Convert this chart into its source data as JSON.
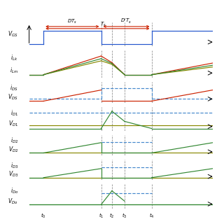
{
  "fig_width": 3.2,
  "fig_height": 3.2,
  "dpi": 100,
  "bg_color": "#ffffff",
  "t0": 0.08,
  "t1": 0.4,
  "t2": 0.46,
  "t3": 0.53,
  "t4": 0.68,
  "tmax": 1.0,
  "n_rows": 7,
  "colors": {
    "red": "#cc2200",
    "green": "#338833",
    "blue": "#2255cc",
    "olive": "#888800",
    "dblue": "#4488cc",
    "gray": "#888888",
    "black": "#000000"
  },
  "tick_labels": [
    "t_0",
    "t_1",
    "t_2",
    "t_3",
    "t_4"
  ],
  "row_heights": [
    1.4,
    1.6,
    1.2,
    1.4,
    1.2,
    1.2,
    1.4
  ]
}
